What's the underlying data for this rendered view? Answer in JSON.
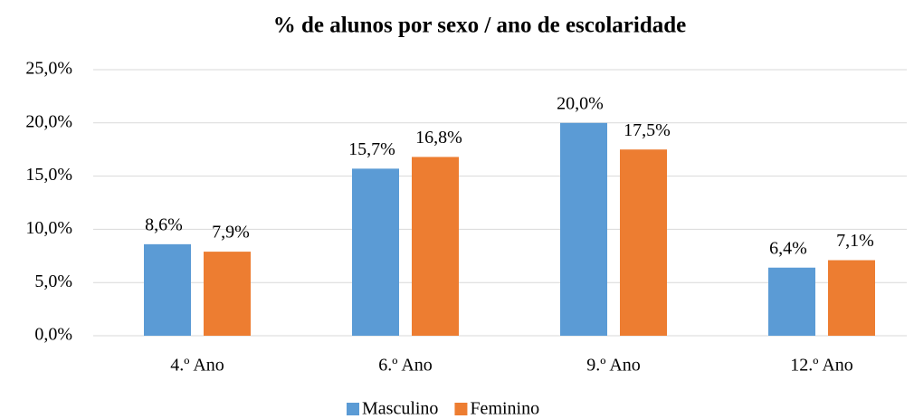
{
  "chart_data": {
    "type": "bar",
    "title": "% de alunos por sexo / ano de escolaridade",
    "categories": [
      "4.º Ano",
      "6.º Ano",
      "9.º Ano",
      "12.º Ano"
    ],
    "series": [
      {
        "name": "Masculino",
        "color": "#5b9bd5",
        "values": [
          8.6,
          15.7,
          20.0,
          6.4
        ],
        "value_labels": [
          "8,6%",
          "15,7%",
          "20,0%",
          "6,4%"
        ]
      },
      {
        "name": "Feminino",
        "color": "#ed7d31",
        "values": [
          7.9,
          16.8,
          17.5,
          7.1
        ],
        "value_labels": [
          "7,9%",
          "16,8%",
          "17,5%",
          "7,1%"
        ]
      }
    ],
    "ylim": [
      0,
      25
    ],
    "yticks": [
      {
        "value": 0,
        "label": "0,0%"
      },
      {
        "value": 5,
        "label": "5,0%"
      },
      {
        "value": 10,
        "label": "10,0%"
      },
      {
        "value": 15,
        "label": "15,0%"
      },
      {
        "value": 20,
        "label": "20,0%"
      },
      {
        "value": 25,
        "label": "25,0%"
      }
    ],
    "grid": true,
    "legend": "bottom"
  }
}
